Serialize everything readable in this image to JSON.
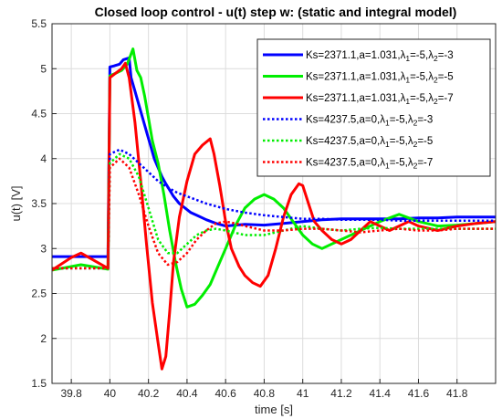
{
  "chart_data": {
    "type": "line",
    "title": "Closed loop control - u(t) step w: (static and integral model)",
    "xlabel": "time [s]",
    "ylabel": "u(t) [V]",
    "xlim": [
      39.7,
      42.0
    ],
    "ylim": [
      1.5,
      5.5
    ],
    "xticks": [
      39.8,
      40,
      40.2,
      40.4,
      40.6,
      40.8,
      41,
      41.2,
      41.4,
      41.6,
      41.8
    ],
    "yticks": [
      1.5,
      2,
      2.5,
      3,
      3.5,
      4,
      4.5,
      5,
      5.5
    ],
    "x_tick_labels": [
      "39.8",
      "40",
      "40.2",
      "40.4",
      "40.6",
      "40.8",
      "41",
      "41.2",
      "41.4",
      "41.6",
      "41.8"
    ],
    "y_tick_labels": [
      "1.5",
      "2",
      "2.5",
      "3",
      "3.5",
      "4",
      "4.5",
      "5",
      "5.5"
    ],
    "grid": true,
    "legend_position": "top-right",
    "series": [
      {
        "name": "Ks=2371.1,a=1.031,λ1=-5,λ2=-3",
        "label_parts": [
          "Ks=2371.1,a=1.031,λ",
          "1",
          "=-5,λ",
          "2",
          "=-3"
        ],
        "color": "#0000ff",
        "style": "solid",
        "x": [
          39.7,
          39.99,
          40.0,
          40.02,
          40.05,
          40.07,
          40.1,
          40.11,
          40.13,
          40.15,
          40.17,
          40.19,
          40.21,
          40.23,
          40.25,
          40.27,
          40.29,
          40.31,
          40.33,
          40.36,
          40.39,
          40.42,
          40.46,
          40.5,
          40.55,
          40.6,
          40.7,
          40.8,
          40.9,
          41.0,
          41.1,
          41.2,
          41.3,
          41.4,
          41.5,
          41.6,
          41.7,
          41.8,
          41.9,
          42.0
        ],
        "y": [
          2.91,
          2.91,
          5.02,
          5.03,
          5.05,
          5.1,
          5.12,
          4.9,
          4.75,
          4.6,
          4.45,
          4.3,
          4.15,
          4.0,
          3.9,
          3.8,
          3.72,
          3.65,
          3.58,
          3.5,
          3.45,
          3.4,
          3.36,
          3.32,
          3.28,
          3.25,
          3.27,
          3.26,
          3.28,
          3.3,
          3.32,
          3.33,
          3.33,
          3.33,
          3.33,
          3.34,
          3.34,
          3.35,
          3.35,
          3.35
        ]
      },
      {
        "name": "Ks=2371.1,a=1.031,λ1=-5,λ2=-5",
        "label_parts": [
          "Ks=2371.1,a=1.031,λ",
          "1",
          "=-5,λ",
          "2",
          "=-5"
        ],
        "color": "#00ee00",
        "style": "solid",
        "x": [
          39.7,
          39.8,
          39.85,
          39.99,
          40.0,
          40.03,
          40.06,
          40.09,
          40.12,
          40.14,
          40.16,
          40.18,
          40.2,
          40.22,
          40.25,
          40.28,
          40.31,
          40.34,
          40.37,
          40.4,
          40.44,
          40.48,
          40.52,
          40.56,
          40.6,
          40.65,
          40.7,
          40.75,
          40.8,
          40.85,
          40.9,
          40.95,
          41.0,
          41.05,
          41.1,
          41.2,
          41.3,
          41.4,
          41.5,
          41.6,
          41.7,
          41.8,
          41.9,
          42.0
        ],
        "y": [
          2.76,
          2.8,
          2.82,
          2.77,
          4.92,
          4.95,
          4.98,
          5.05,
          5.22,
          4.98,
          4.9,
          4.7,
          4.45,
          4.2,
          3.95,
          3.6,
          3.2,
          2.85,
          2.55,
          2.35,
          2.38,
          2.48,
          2.6,
          2.8,
          3.0,
          3.25,
          3.45,
          3.55,
          3.6,
          3.55,
          3.45,
          3.3,
          3.15,
          3.05,
          3.0,
          3.1,
          3.2,
          3.3,
          3.38,
          3.3,
          3.25,
          3.26,
          3.28,
          3.3
        ]
      },
      {
        "name": "Ks=2371.1,a=1.031,λ1=-5,λ2=-7",
        "label_parts": [
          "Ks=2371.1,a=1.031,λ",
          "1",
          "=-5,λ",
          "2",
          "=-7"
        ],
        "color": "#ff0000",
        "style": "solid",
        "x": [
          39.7,
          39.8,
          39.85,
          39.99,
          40.0,
          40.03,
          40.06,
          40.08,
          40.1,
          40.13,
          40.16,
          40.19,
          40.22,
          40.25,
          40.27,
          40.29,
          40.31,
          40.33,
          40.36,
          40.4,
          40.44,
          40.48,
          40.52,
          40.54,
          40.57,
          40.6,
          40.63,
          40.67,
          40.7,
          40.74,
          40.78,
          40.82,
          40.86,
          40.9,
          40.94,
          40.98,
          41.0,
          41.03,
          41.06,
          41.1,
          41.15,
          41.2,
          41.25,
          41.3,
          41.35,
          41.4,
          41.45,
          41.5,
          41.55,
          41.6,
          41.7,
          41.8,
          41.9,
          42.0
        ],
        "y": [
          2.76,
          2.9,
          2.95,
          2.78,
          4.9,
          4.95,
          5.0,
          5.06,
          4.9,
          4.4,
          3.75,
          3.05,
          2.4,
          1.95,
          1.66,
          1.8,
          2.3,
          2.85,
          3.35,
          3.75,
          4.05,
          4.15,
          4.22,
          4.05,
          3.7,
          3.3,
          3.0,
          2.8,
          2.7,
          2.62,
          2.58,
          2.7,
          3.0,
          3.35,
          3.6,
          3.72,
          3.7,
          3.5,
          3.3,
          3.2,
          3.1,
          3.05,
          3.1,
          3.2,
          3.3,
          3.25,
          3.2,
          3.25,
          3.3,
          3.25,
          3.2,
          3.25,
          3.28,
          3.3
        ]
      },
      {
        "name": "Ks=4237.5,a=0,λ1=-5,λ2=-3",
        "label_parts": [
          "Ks=4237.5,a=0,λ",
          "1",
          "=-5,λ",
          "2",
          "=-3"
        ],
        "color": "#0000ff",
        "style": "dotted",
        "x": [
          39.7,
          39.99,
          40.0,
          40.05,
          40.1,
          40.15,
          40.2,
          40.25,
          40.3,
          40.35,
          40.4,
          40.45,
          40.5,
          40.6,
          40.7,
          40.8,
          40.9,
          41.0,
          41.1,
          41.2,
          41.3,
          41.4,
          41.5,
          41.6,
          41.7,
          41.8,
          41.9,
          42.0
        ],
        "y": [
          2.78,
          2.78,
          4.05,
          4.1,
          4.05,
          3.95,
          3.85,
          3.75,
          3.68,
          3.62,
          3.58,
          3.54,
          3.5,
          3.44,
          3.4,
          3.37,
          3.35,
          3.33,
          3.33,
          3.32,
          3.32,
          3.32,
          3.31,
          3.31,
          3.31,
          3.31,
          3.31,
          3.31
        ]
      },
      {
        "name": "Ks=4237.5,a=0,λ1=-5,λ2=-5",
        "label_parts": [
          "Ks=4237.5,a=0,λ",
          "1",
          "=-5,λ",
          "2",
          "=-5"
        ],
        "color": "#00ee00",
        "style": "dotted",
        "x": [
          39.7,
          39.99,
          40.0,
          40.05,
          40.1,
          40.15,
          40.2,
          40.25,
          40.3,
          40.35,
          40.4,
          40.45,
          40.5,
          40.55,
          40.6,
          40.7,
          40.8,
          40.9,
          41.0,
          41.1,
          41.2,
          41.3,
          41.4,
          41.5,
          41.6,
          41.7,
          41.8,
          41.9,
          42.0
        ],
        "y": [
          2.78,
          2.78,
          3.95,
          4.05,
          4.0,
          3.8,
          3.45,
          3.1,
          2.95,
          2.95,
          3.05,
          3.15,
          3.2,
          3.22,
          3.2,
          3.15,
          3.15,
          3.2,
          3.25,
          3.22,
          3.2,
          3.22,
          3.23,
          3.22,
          3.22,
          3.22,
          3.22,
          3.22,
          3.22
        ]
      },
      {
        "name": "Ks=4237.5,a=0,λ1=-5,λ2=-7",
        "label_parts": [
          "Ks=4237.5,a=0,λ",
          "1",
          "=-5,λ",
          "2",
          "=-7"
        ],
        "color": "#ff0000",
        "style": "dotted",
        "x": [
          39.7,
          39.99,
          40.0,
          40.05,
          40.1,
          40.15,
          40.2,
          40.25,
          40.3,
          40.35,
          40.4,
          40.45,
          40.5,
          40.55,
          40.6,
          40.65,
          40.7,
          40.8,
          40.9,
          41.0,
          41.1,
          41.2,
          41.3,
          41.4,
          41.5,
          41.6,
          41.7,
          41.8,
          41.9,
          42.0
        ],
        "y": [
          2.78,
          2.78,
          3.9,
          4.0,
          3.9,
          3.6,
          3.25,
          2.95,
          2.82,
          2.85,
          2.95,
          3.1,
          3.2,
          3.28,
          3.3,
          3.28,
          3.25,
          3.2,
          3.2,
          3.22,
          3.22,
          3.2,
          3.18,
          3.2,
          3.22,
          3.2,
          3.2,
          3.22,
          3.22,
          3.22
        ]
      }
    ]
  }
}
